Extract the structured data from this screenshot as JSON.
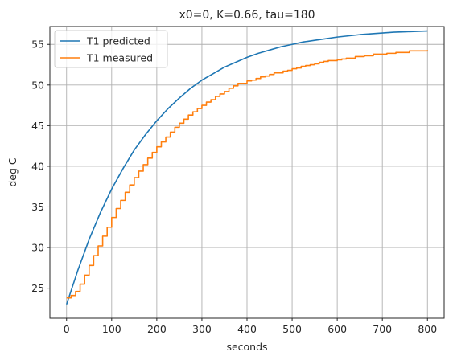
{
  "chart_data": {
    "type": "line",
    "title": "x0=0, K=0.66, tau=180",
    "xlabel": "seconds",
    "ylabel": "deg C",
    "xlim": [
      -37,
      837
    ],
    "ylim": [
      21.3,
      57.2
    ],
    "xticks": [
      0,
      100,
      200,
      300,
      400,
      500,
      600,
      700,
      800
    ],
    "yticks": [
      25,
      30,
      35,
      40,
      45,
      50,
      55
    ],
    "grid": true,
    "legend_position": "top-left",
    "series": [
      {
        "name": "T1 predicted",
        "color": "#1f77b4",
        "step": false,
        "x": [
          0,
          25,
          50,
          75,
          100,
          125,
          150,
          175,
          200,
          225,
          250,
          275,
          300,
          325,
          350,
          375,
          400,
          425,
          450,
          475,
          500,
          525,
          550,
          575,
          600,
          625,
          650,
          675,
          700,
          725,
          750,
          775,
          800
        ],
        "y": [
          23.0,
          27.2,
          31.0,
          34.3,
          37.2,
          39.7,
          42.0,
          43.9,
          45.6,
          47.1,
          48.4,
          49.6,
          50.6,
          51.4,
          52.2,
          52.8,
          53.4,
          53.9,
          54.3,
          54.7,
          55.0,
          55.3,
          55.5,
          55.7,
          55.9,
          56.05,
          56.2,
          56.3,
          56.4,
          56.5,
          56.55,
          56.6,
          56.65
        ]
      },
      {
        "name": "T1 measured",
        "color": "#ff7f0e",
        "step": true,
        "x": [
          0,
          10,
          20,
          30,
          40,
          50,
          60,
          70,
          80,
          90,
          100,
          110,
          120,
          130,
          140,
          150,
          160,
          170,
          180,
          190,
          200,
          210,
          220,
          230,
          240,
          250,
          260,
          270,
          280,
          290,
          300,
          310,
          320,
          330,
          340,
          350,
          360,
          370,
          380,
          390,
          400,
          410,
          420,
          430,
          440,
          450,
          460,
          470,
          480,
          490,
          500,
          510,
          520,
          530,
          540,
          550,
          560,
          570,
          580,
          590,
          600,
          610,
          620,
          630,
          640,
          650,
          660,
          670,
          680,
          690,
          700,
          710,
          720,
          730,
          740,
          750,
          760,
          770,
          780,
          790,
          800
        ],
        "y": [
          23.8,
          24.1,
          24.6,
          25.5,
          26.6,
          27.8,
          29.0,
          30.2,
          31.4,
          32.5,
          33.7,
          34.8,
          35.8,
          36.8,
          37.7,
          38.6,
          39.4,
          40.2,
          41.0,
          41.7,
          42.4,
          43.0,
          43.6,
          44.2,
          44.8,
          45.3,
          45.8,
          46.3,
          46.7,
          47.1,
          47.5,
          47.9,
          48.2,
          48.6,
          48.9,
          49.2,
          49.6,
          49.9,
          50.2,
          50.2,
          50.5,
          50.6,
          50.8,
          51.0,
          51.1,
          51.3,
          51.5,
          51.5,
          51.7,
          51.8,
          52.0,
          52.1,
          52.3,
          52.4,
          52.5,
          52.6,
          52.8,
          52.9,
          53.0,
          53.0,
          53.1,
          53.2,
          53.3,
          53.3,
          53.5,
          53.5,
          53.6,
          53.6,
          53.8,
          53.8,
          53.8,
          53.9,
          53.9,
          54.0,
          54.0,
          54.0,
          54.2,
          54.2,
          54.2,
          54.2,
          54.3
        ]
      }
    ]
  }
}
